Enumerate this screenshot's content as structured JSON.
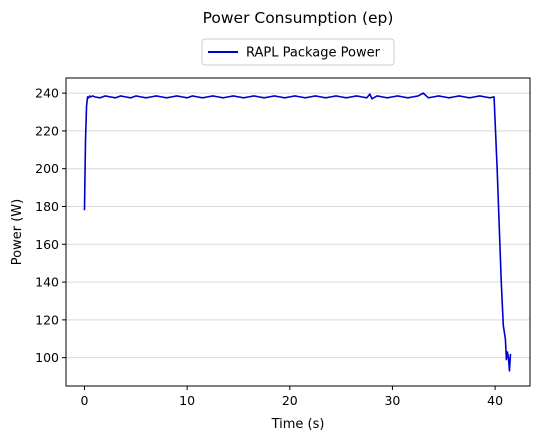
{
  "chart_data": {
    "type": "line",
    "title": "Power Consumption (ep)",
    "xlabel": "Time (s)",
    "ylabel": "Power (W)",
    "xlim": [
      -1.8,
      43.4
    ],
    "ylim": [
      85,
      248
    ],
    "x_ticks": [
      0,
      10,
      20,
      30,
      40
    ],
    "y_ticks": [
      100,
      120,
      140,
      160,
      180,
      200,
      220,
      240
    ],
    "grid": "horizontal",
    "legend_position": "upper-center",
    "series": [
      {
        "name": "RAPL Package Power",
        "color": "#0000cc",
        "x": [
          0.0,
          0.1,
          0.2,
          0.3,
          0.4,
          0.5,
          0.6,
          0.8,
          1.0,
          1.5,
          2.0,
          2.5,
          3.0,
          3.5,
          4.0,
          4.5,
          5.0,
          5.5,
          6.0,
          6.5,
          7.0,
          7.5,
          8.0,
          8.5,
          9.0,
          9.5,
          10.0,
          10.5,
          11.0,
          11.5,
          12.0,
          12.5,
          13.0,
          13.5,
          14.0,
          14.5,
          15.0,
          15.5,
          16.0,
          16.5,
          17.0,
          17.5,
          18.0,
          18.5,
          19.0,
          19.5,
          20.0,
          20.5,
          21.0,
          21.5,
          22.0,
          22.5,
          23.0,
          23.5,
          24.0,
          24.5,
          25.0,
          25.5,
          26.0,
          26.5,
          27.0,
          27.5,
          27.8,
          28.0,
          28.5,
          29.0,
          29.5,
          30.0,
          30.5,
          31.0,
          31.5,
          32.0,
          32.5,
          33.0,
          33.5,
          34.0,
          34.5,
          35.0,
          35.5,
          36.0,
          36.5,
          37.0,
          37.5,
          38.0,
          38.5,
          39.0,
          39.5,
          39.9,
          40.0,
          40.2,
          40.4,
          40.6,
          40.8,
          41.0,
          41.1,
          41.2,
          41.3,
          41.4,
          41.5
        ],
        "values": [
          178,
          215,
          233,
          238,
          237.5,
          238.5,
          238,
          238.5,
          238,
          237.5,
          238.5,
          238,
          237.5,
          238.5,
          238,
          237.5,
          238.5,
          238,
          237.5,
          238,
          238.5,
          238,
          237.5,
          238,
          238.5,
          238,
          237.5,
          238.5,
          238,
          237.5,
          238,
          238.5,
          238,
          237.5,
          238,
          238.5,
          238,
          237.5,
          238,
          238.5,
          238,
          237.5,
          238,
          238.5,
          238,
          237.5,
          238,
          238.5,
          238,
          237.5,
          238,
          238.5,
          238,
          237.5,
          238,
          238.5,
          238,
          237.5,
          238,
          238.5,
          238,
          237.5,
          239.5,
          237,
          238.5,
          238,
          237.5,
          238,
          238.5,
          238,
          237.5,
          238,
          238.5,
          240,
          237.5,
          238,
          238.5,
          238,
          237.5,
          238,
          238.5,
          238,
          237.5,
          238,
          238.5,
          238,
          237.5,
          238,
          225,
          200,
          170,
          140,
          117,
          110,
          99,
          103,
          100,
          93,
          102
        ]
      }
    ]
  }
}
